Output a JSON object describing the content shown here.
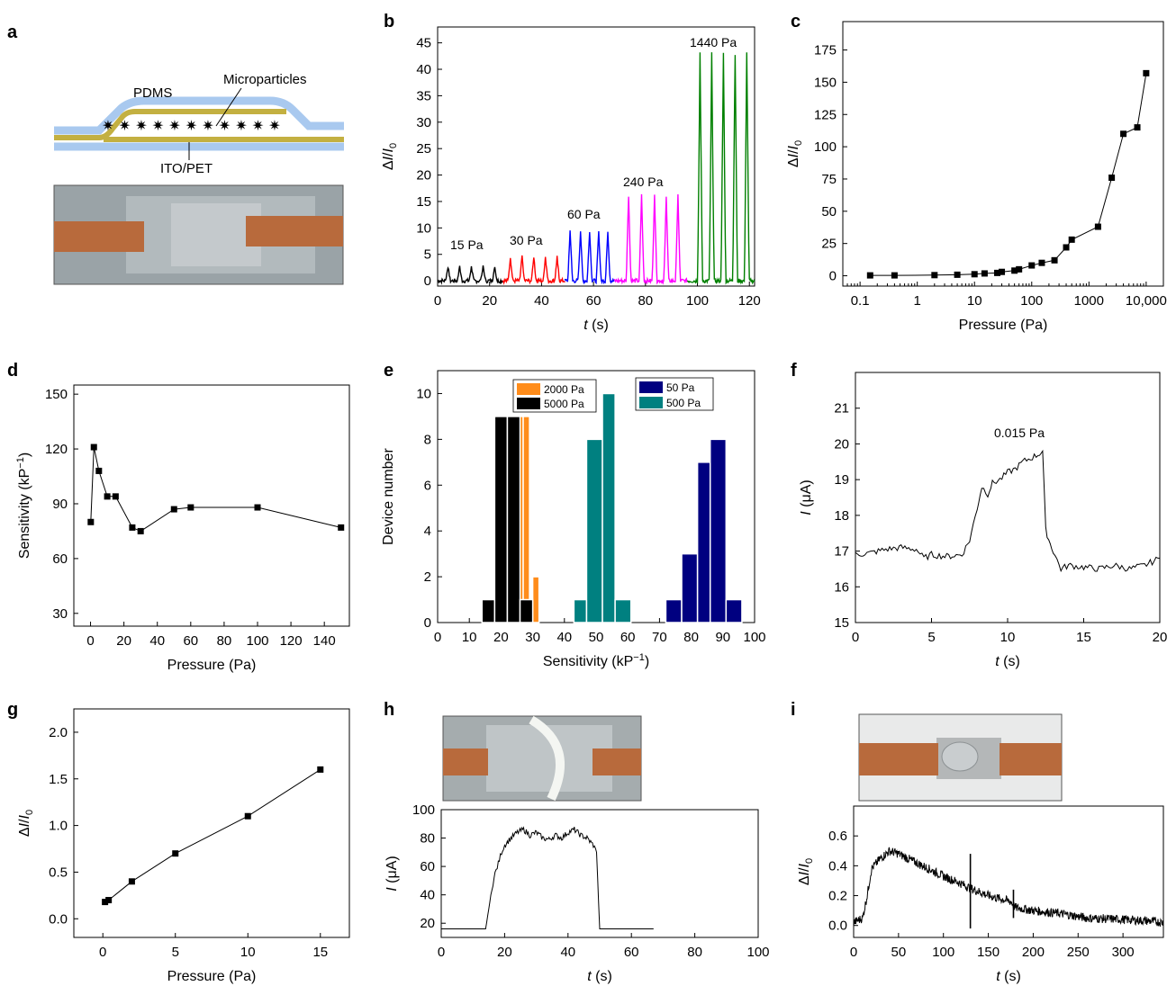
{
  "panel_letters": [
    "a",
    "b",
    "c",
    "d",
    "e",
    "f",
    "g",
    "h",
    "i"
  ],
  "schematic": {
    "pdms_label": "PDMS",
    "microparticles_label": "Microparticles",
    "itopet_label": "ITO/PET",
    "colors": {
      "pdms": "#a9c9ef",
      "ito": "#c3b041",
      "particle": "#1f5fbf",
      "copper": "#b86a3c",
      "photo_bg": "#9aa3a7"
    }
  },
  "chart_data": [
    {
      "panel": "b",
      "type": "line",
      "xlabel": "t (s)",
      "ylabel": "ΔI/I0",
      "xlim": [
        0,
        122
      ],
      "ylim": [
        -1,
        48
      ],
      "xticks": [
        0,
        20,
        40,
        60,
        80,
        100,
        120
      ],
      "yticks": [
        0,
        5,
        10,
        15,
        20,
        25,
        30,
        35,
        40,
        45
      ],
      "segments": [
        {
          "name": "15 Pa",
          "color": "#000000",
          "t_start": 0,
          "t_end": 25,
          "peak_times": [
            4,
            8.5,
            13,
            17.5,
            22
          ],
          "peak_height": 2.6
        },
        {
          "name": "30 Pa",
          "color": "#ff0000",
          "t_start": 25,
          "t_end": 49,
          "peak_times": [
            28,
            32.5,
            37,
            41.5,
            46
          ],
          "peak_height": 4.5
        },
        {
          "name": "60 Pa",
          "color": "#0000ff",
          "t_start": 49,
          "t_end": 68,
          "peak_times": [
            51,
            55,
            58.5,
            62,
            65.5
          ],
          "peak_height": 9.5
        },
        {
          "name": "240 Pa",
          "color": "#ff00ff",
          "t_start": 68,
          "t_end": 96,
          "peak_times": [
            73.5,
            78.5,
            83.5,
            88,
            92.5
          ],
          "peak_height": 16.2
        },
        {
          "name": "1440 Pa",
          "color": "#008000",
          "t_start": 96,
          "t_end": 122,
          "peak_times": [
            101,
            105.5,
            110,
            114.5,
            119
          ],
          "peak_height": 43
        }
      ],
      "annotations": [
        "15 Pa",
        "30 Pa",
        "60 Pa",
        "240 Pa",
        "1440 Pa"
      ]
    },
    {
      "panel": "c",
      "type": "line",
      "xlabel": "Pressure (Pa)",
      "ylabel": "ΔI/I0",
      "xscale": "log",
      "xlim": [
        0.05,
        20000
      ],
      "ylim": [
        -8,
        197
      ],
      "xticks": [
        0.1,
        1,
        10,
        100,
        1000,
        10000
      ],
      "xtick_labels": [
        "0.1",
        "1",
        "10",
        "100",
        "1000",
        "10,000"
      ],
      "yticks": [
        0,
        25,
        50,
        75,
        100,
        125,
        150,
        175
      ],
      "x": [
        0.15,
        0.4,
        2,
        5,
        10,
        15,
        25,
        30,
        50,
        60,
        100,
        150,
        250,
        400,
        500,
        1440,
        2500,
        4000,
        7000,
        10000
      ],
      "y": [
        0.3,
        0.3,
        0.5,
        0.8,
        1.2,
        1.8,
        2.2,
        3,
        4,
        5,
        8,
        10,
        12,
        22,
        28,
        38,
        76,
        110,
        115,
        157
      ]
    },
    {
      "panel": "d",
      "type": "line",
      "xlabel": "Pressure (Pa)",
      "ylabel": "Sensitivity (kP−1)",
      "xlim": [
        -10,
        155
      ],
      "ylim": [
        23,
        155
      ],
      "xticks": [
        0,
        20,
        40,
        60,
        80,
        100,
        120,
        140
      ],
      "yticks": [
        30,
        60,
        90,
        120,
        150
      ],
      "x": [
        0.15,
        2,
        5,
        10,
        15,
        25,
        30,
        50,
        60,
        100,
        150
      ],
      "y": [
        80,
        121,
        108,
        94,
        94,
        77,
        75,
        87,
        88,
        88,
        77
      ]
    },
    {
      "panel": "e",
      "type": "bar",
      "xlabel": "Sensitivity (kP−1)",
      "ylabel": "Device number",
      "xlim": [
        0,
        100
      ],
      "ylim": [
        0,
        11
      ],
      "xticks": [
        0,
        10,
        20,
        30,
        40,
        50,
        60,
        70,
        80,
        90,
        100
      ],
      "yticks": [
        0,
        2,
        4,
        6,
        8,
        10
      ],
      "legend_placement": "top",
      "series": [
        {
          "name": "2000 Pa",
          "color": "#ff8c1a",
          "bins": [
            [
              17,
              19,
              1
            ],
            [
              19,
              23,
              8
            ],
            [
              23,
              27,
              9
            ],
            [
              27,
              29,
              9
            ],
            [
              30,
              32,
              2
            ]
          ]
        },
        {
          "name": "5000 Pa",
          "color": "#000000",
          "bins": [
            [
              14,
              18,
              1
            ],
            [
              18,
              22,
              9
            ],
            [
              22,
              26,
              9
            ],
            [
              26,
              30,
              1
            ]
          ]
        },
        {
          "name": "50 Pa",
          "color": "#000080",
          "bins": [
            [
              72,
              77,
              1
            ],
            [
              77,
              82,
              3
            ],
            [
              82,
              86,
              7
            ],
            [
              86,
              91,
              8
            ],
            [
              91,
              96,
              1
            ]
          ]
        },
        {
          "name": "500 Pa",
          "color": "#008080",
          "bins": [
            [
              43,
              47,
              1
            ],
            [
              47,
              52,
              8
            ],
            [
              52,
              56,
              10
            ],
            [
              56,
              61,
              1
            ]
          ]
        }
      ]
    },
    {
      "panel": "f",
      "type": "line",
      "xlabel": "t (s)",
      "ylabel": "I (μA)",
      "xlim": [
        0,
        20
      ],
      "ylim": [
        15,
        22
      ],
      "xticks": [
        0,
        5,
        10,
        15,
        20
      ],
      "yticks": [
        15,
        16,
        17,
        18,
        19,
        20,
        21
      ],
      "annotation": "0.015 Pa",
      "x": [
        0,
        1,
        2,
        3,
        4,
        4.5,
        5,
        6,
        7,
        7.5,
        8,
        8.3,
        8.7,
        9,
        9.5,
        10,
        10.5,
        11,
        11.5,
        12,
        12.3,
        12.5,
        12.8,
        13,
        13.5,
        14,
        15,
        16,
        17,
        18,
        19,
        20
      ],
      "y": [
        16.9,
        16.95,
        17.05,
        17.1,
        17.05,
        16.8,
        16.9,
        16.85,
        16.9,
        17.3,
        18.2,
        18.8,
        18.6,
        18.9,
        19.0,
        19.2,
        19.3,
        19.5,
        19.6,
        19.7,
        19.8,
        17.6,
        17.2,
        17.0,
        16.5,
        16.6,
        16.55,
        16.5,
        16.6,
        16.5,
        16.6,
        16.8
      ]
    },
    {
      "panel": "g",
      "type": "line",
      "xlabel": "Pressure (Pa)",
      "ylabel": "ΔI/I0",
      "xlim": [
        -2,
        17
      ],
      "ylim": [
        -0.2,
        2.25
      ],
      "xticks": [
        0,
        5,
        10,
        15
      ],
      "yticks": [
        0.0,
        0.5,
        1.0,
        1.5,
        2.0
      ],
      "x": [
        0.15,
        0.4,
        2,
        5,
        10,
        15
      ],
      "y": [
        0.18,
        0.2,
        0.4,
        0.7,
        1.1,
        1.6
      ]
    },
    {
      "panel": "h",
      "type": "line",
      "xlabel": "t (s)",
      "ylabel": "I (μA)",
      "xlim": [
        0,
        100
      ],
      "ylim": [
        10,
        100
      ],
      "xticks": [
        0,
        20,
        40,
        60,
        80,
        100
      ],
      "yticks": [
        20,
        40,
        60,
        80,
        100
      ],
      "x": [
        0,
        14,
        15,
        16,
        17,
        18,
        19,
        20,
        22,
        24,
        26,
        28,
        30,
        32,
        34,
        36,
        38,
        40,
        42,
        44,
        46,
        48,
        49,
        50,
        55,
        60,
        65,
        67
      ],
      "y": [
        16,
        16,
        30,
        45,
        55,
        62,
        70,
        75,
        80,
        84,
        86,
        82,
        84,
        80,
        79,
        82,
        80,
        84,
        86,
        82,
        80,
        75,
        70,
        16,
        16,
        16,
        16,
        16
      ]
    },
    {
      "panel": "i",
      "type": "line",
      "xlabel": "t (s)",
      "ylabel": "ΔI/I0",
      "xlim": [
        0,
        345
      ],
      "ylim": [
        -0.08,
        0.8
      ],
      "xticks": [
        0,
        50,
        100,
        150,
        200,
        250,
        300
      ],
      "yticks": [
        0.0,
        0.2,
        0.4,
        0.6
      ],
      "x": [
        0,
        10,
        15,
        20,
        30,
        40,
        50,
        70,
        100,
        120,
        130,
        150,
        175,
        180,
        200,
        230,
        260,
        300,
        330,
        345
      ],
      "y": [
        0.02,
        0.05,
        0.2,
        0.38,
        0.45,
        0.5,
        0.48,
        0.42,
        0.33,
        0.28,
        0.25,
        0.2,
        0.16,
        0.12,
        0.1,
        0.08,
        0.05,
        0.04,
        0.03,
        0.02
      ],
      "spikes": [
        {
          "x": 130,
          "lo": -0.02,
          "hi": 0.48
        },
        {
          "x": 178,
          "lo": 0.05,
          "hi": 0.24
        }
      ]
    }
  ]
}
